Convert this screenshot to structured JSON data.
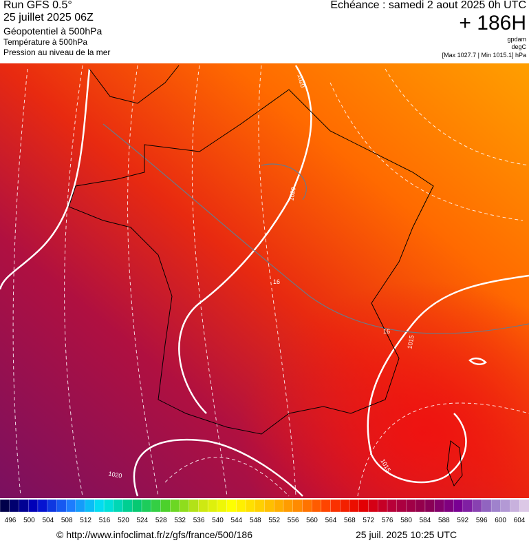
{
  "header": {
    "left": [
      "Run GFS 0.5°",
      "25 juillet 2025 06Z",
      "Géopotentiel à 500hPa",
      "Température à 500hPa",
      "Pression au niveau de la mer"
    ],
    "right": {
      "echeance": "Echéance : samedi 2 aout 2025 0h UTC",
      "lead": "+ 186H",
      "units": [
        "gpdam",
        "degC"
      ],
      "range": "[Max 1027.7 | Min 1015.1] hPa"
    }
  },
  "map": {
    "contour_labels": [
      "1020",
      "1020",
      "1015",
      "1015",
      "1020",
      "16",
      "16"
    ]
  },
  "colorbar": {
    "labels": [
      496,
      500,
      504,
      508,
      512,
      516,
      520,
      524,
      528,
      532,
      536,
      540,
      544,
      548,
      552,
      556,
      560,
      564,
      568,
      572,
      576,
      580,
      584,
      588,
      592,
      596,
      600,
      604
    ],
    "color_stops": [
      "#00004a",
      "#0000c8",
      "#1e78ff",
      "#00e6f0",
      "#00c878",
      "#50d228",
      "#c8e614",
      "#ffff00",
      "#ffc800",
      "#ff8c00",
      "#ff3c00",
      "#e60000",
      "#b4003c",
      "#8c0050",
      "#780096",
      "#9678c8",
      "#dcc8e6"
    ]
  },
  "footer": {
    "source": "© http://www.infoclimat.fr/z/gfs/france/500/186",
    "date": "25 juil. 2025 10:25 UTC"
  }
}
